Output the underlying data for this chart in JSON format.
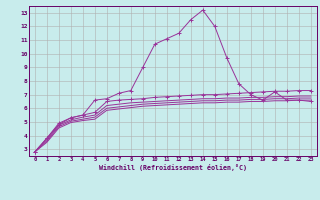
{
  "background_color": "#c8ecec",
  "grid_color": "#b0b0b0",
  "line_color": "#993399",
  "xlabel": "Windchill (Refroidissement éolien,°C)",
  "xlabel_color": "#660066",
  "tick_color": "#660066",
  "xlim": [
    -0.5,
    23.5
  ],
  "ylim": [
    2.5,
    13.5
  ],
  "yticks": [
    3,
    4,
    5,
    6,
    7,
    8,
    9,
    10,
    11,
    12,
    13
  ],
  "xticks": [
    0,
    1,
    2,
    3,
    4,
    5,
    6,
    7,
    8,
    9,
    10,
    11,
    12,
    13,
    14,
    15,
    16,
    17,
    18,
    19,
    20,
    21,
    22,
    23
  ],
  "series": [
    {
      "x": [
        0,
        1,
        2,
        3,
        4,
        5,
        6,
        7,
        8,
        9,
        10,
        11,
        12,
        13,
        14,
        15,
        16,
        17,
        18,
        19,
        20,
        21,
        22,
        23
      ],
      "y": [
        2.8,
        3.8,
        4.8,
        5.3,
        5.5,
        6.6,
        6.7,
        7.1,
        7.3,
        9.0,
        10.7,
        11.1,
        11.5,
        12.5,
        13.2,
        12.0,
        9.7,
        7.8,
        7.0,
        6.6,
        7.2,
        6.6,
        6.6,
        6.5
      ],
      "marker": "+"
    },
    {
      "x": [
        0,
        1,
        2,
        3,
        4,
        5,
        6,
        7,
        8,
        9,
        10,
        11,
        12,
        13,
        14,
        15,
        16,
        17,
        18,
        19,
        20,
        21,
        22,
        23
      ],
      "y": [
        2.8,
        3.8,
        4.9,
        5.3,
        5.5,
        5.7,
        6.5,
        6.6,
        6.65,
        6.7,
        6.8,
        6.85,
        6.9,
        6.95,
        7.0,
        7.0,
        7.05,
        7.1,
        7.15,
        7.2,
        7.25,
        7.25,
        7.3,
        7.3
      ],
      "marker": "+"
    },
    {
      "x": [
        0,
        1,
        2,
        3,
        4,
        5,
        6,
        7,
        8,
        9,
        10,
        11,
        12,
        13,
        14,
        15,
        16,
        17,
        18,
        19,
        20,
        21,
        22,
        23
      ],
      "y": [
        2.8,
        3.7,
        4.75,
        5.15,
        5.35,
        5.5,
        6.2,
        6.3,
        6.4,
        6.45,
        6.5,
        6.55,
        6.6,
        6.65,
        6.7,
        6.7,
        6.75,
        6.75,
        6.8,
        6.8,
        6.85,
        6.85,
        6.9,
        6.9
      ],
      "marker": null
    },
    {
      "x": [
        0,
        1,
        2,
        3,
        4,
        5,
        6,
        7,
        8,
        9,
        10,
        11,
        12,
        13,
        14,
        15,
        16,
        17,
        18,
        19,
        20,
        21,
        22,
        23
      ],
      "y": [
        2.8,
        3.6,
        4.65,
        5.05,
        5.2,
        5.35,
        6.0,
        6.1,
        6.2,
        6.3,
        6.35,
        6.4,
        6.45,
        6.5,
        6.55,
        6.55,
        6.6,
        6.6,
        6.65,
        6.65,
        6.7,
        6.7,
        6.75,
        6.75
      ],
      "marker": null
    },
    {
      "x": [
        0,
        1,
        2,
        3,
        4,
        5,
        6,
        7,
        8,
        9,
        10,
        11,
        12,
        13,
        14,
        15,
        16,
        17,
        18,
        19,
        20,
        21,
        22,
        23
      ],
      "y": [
        2.8,
        3.5,
        4.55,
        4.95,
        5.1,
        5.2,
        5.85,
        5.95,
        6.05,
        6.15,
        6.2,
        6.25,
        6.3,
        6.35,
        6.4,
        6.4,
        6.45,
        6.45,
        6.5,
        6.5,
        6.55,
        6.55,
        6.6,
        6.6
      ],
      "marker": null
    }
  ]
}
